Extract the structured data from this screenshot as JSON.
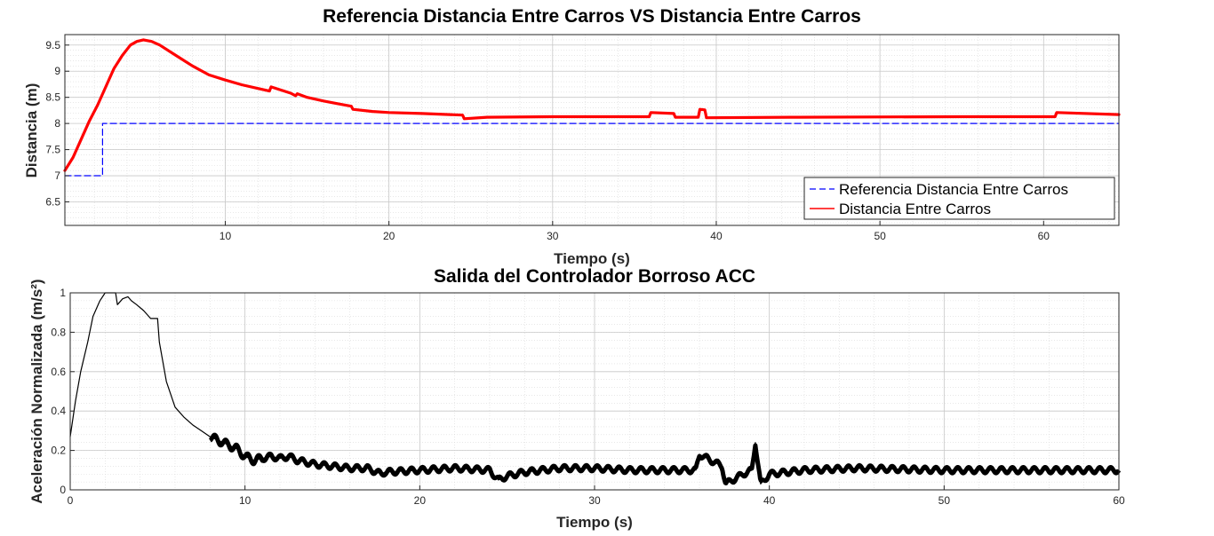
{
  "chart_data": [
    {
      "type": "line",
      "title": "Referencia Distancia Entre Carros VS Distancia Entre Carros",
      "xlabel": "Tiempo (s)",
      "ylabel": "Distancia (m)",
      "xlim": [
        0.2,
        64.6
      ],
      "ylim": [
        6.05,
        9.7
      ],
      "xticks": [
        10,
        20,
        30,
        40,
        50,
        60
      ],
      "yticks": [
        6.5,
        7,
        7.5,
        8,
        8.5,
        9,
        9.5
      ],
      "xtick_labels": [
        "10",
        "20",
        "30",
        "40",
        "50",
        "60"
      ],
      "ytick_labels": [
        "6.5",
        "7",
        "7.5",
        "8",
        "8.5",
        "9",
        "9.5"
      ],
      "grid": true,
      "minor_grid": true,
      "legend_position": "bottom-right",
      "colors": {
        "reference": "#0000ff",
        "distance": "#ff0000"
      },
      "series": [
        {
          "name": "Referencia Distancia Entre Carros",
          "style": "dashed",
          "x": [
            0.2,
            2.5,
            2.5,
            64.6
          ],
          "y": [
            7.0,
            7.0,
            8.0,
            8.0
          ]
        },
        {
          "name": "Distancia Entre Carros",
          "style": "solid",
          "x": [
            0.2,
            0.7,
            1.2,
            1.7,
            2.2,
            2.7,
            3.2,
            3.7,
            4.2,
            4.6,
            5.0,
            5.5,
            6.0,
            7.0,
            8.0,
            9.0,
            10.0,
            11.0,
            12.0,
            12.7,
            12.8,
            14.0,
            14.3,
            14.4,
            15.0,
            16.0,
            17.0,
            17.7,
            17.8,
            19.0,
            20.0,
            22.0,
            24.5,
            24.6,
            26.0,
            30.0,
            35.9,
            36.0,
            37.4,
            37.5,
            38.9,
            39.0,
            39.3,
            39.4,
            45.0,
            55.0,
            60.7,
            60.8,
            64.6
          ],
          "y": [
            7.1,
            7.35,
            7.7,
            8.05,
            8.35,
            8.7,
            9.05,
            9.3,
            9.5,
            9.57,
            9.6,
            9.57,
            9.5,
            9.3,
            9.1,
            8.93,
            8.83,
            8.74,
            8.67,
            8.62,
            8.7,
            8.58,
            8.53,
            8.57,
            8.5,
            8.43,
            8.37,
            8.33,
            8.27,
            8.23,
            8.21,
            8.19,
            8.16,
            8.09,
            8.12,
            8.13,
            8.13,
            8.21,
            8.19,
            8.12,
            8.12,
            8.27,
            8.26,
            8.11,
            8.12,
            8.13,
            8.13,
            8.21,
            8.17
          ]
        }
      ]
    },
    {
      "type": "line",
      "title": "Salida del Controlador Borroso ACC",
      "xlabel": "Tiempo (s)",
      "ylabel": "Aceleración Normalizada (m/s²)",
      "xlim": [
        0,
        60
      ],
      "ylim": [
        0,
        1
      ],
      "xticks": [
        0,
        10,
        20,
        30,
        40,
        50,
        60
      ],
      "yticks": [
        0,
        0.2,
        0.4,
        0.6,
        0.8,
        1
      ],
      "xtick_labels": [
        "0",
        "10",
        "20",
        "30",
        "40",
        "50",
        "60"
      ],
      "ytick_labels": [
        "0",
        "0.2",
        "0.4",
        "0.6",
        "0.8",
        "1"
      ],
      "grid": true,
      "minor_grid": true,
      "colors": {
        "output": "#000000"
      },
      "series": [
        {
          "style": "solid",
          "x": [
            0,
            0.3,
            0.6,
            1.0,
            1.3,
            1.7,
            2.0,
            2.3,
            2.6,
            2.7,
            3.0,
            3.3,
            3.5,
            3.8,
            4.2,
            4.6,
            5.0,
            5.1,
            5.5,
            6.0,
            6.5,
            7.0,
            7.5,
            8.0,
            8.5,
            9.0,
            9.5,
            10.0,
            10.5,
            11.0,
            11.5,
            12.0,
            12.5,
            13.0,
            14.0,
            15.0,
            16.0,
            17.0,
            17.8,
            18.0,
            20.0,
            22.0,
            24.0,
            24.5,
            25.0,
            26.0,
            28.0,
            30.0,
            32.0,
            34.0,
            35.8,
            36.0,
            37.3,
            37.5,
            38.5,
            39.0,
            39.2,
            39.5,
            40.0,
            42.0,
            45.0,
            50.0,
            55.0,
            60.0
          ],
          "y": [
            0.27,
            0.45,
            0.6,
            0.75,
            0.88,
            0.96,
            1.0,
            1.0,
            1.0,
            0.94,
            0.97,
            0.98,
            0.96,
            0.94,
            0.91,
            0.87,
            0.87,
            0.75,
            0.55,
            0.42,
            0.37,
            0.33,
            0.3,
            0.27,
            0.25,
            0.23,
            0.21,
            0.17,
            0.15,
            0.16,
            0.17,
            0.16,
            0.17,
            0.15,
            0.13,
            0.12,
            0.11,
            0.11,
            0.08,
            0.09,
            0.1,
            0.11,
            0.1,
            0.05,
            0.07,
            0.09,
            0.11,
            0.11,
            0.1,
            0.1,
            0.1,
            0.18,
            0.12,
            0.03,
            0.08,
            0.1,
            0.24,
            0.03,
            0.08,
            0.1,
            0.11,
            0.1,
            0.1,
            0.1
          ]
        }
      ]
    }
  ]
}
